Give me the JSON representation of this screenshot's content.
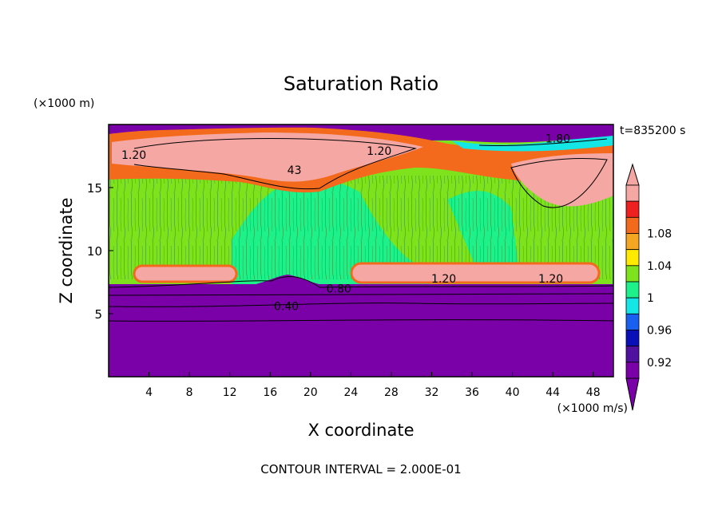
{
  "chart_data": {
    "type": "heatmap",
    "title": "Saturation Ratio",
    "xlabel": "X coordinate",
    "ylabel": "Z coordinate",
    "x_unit": "(×1000 m/s)",
    "y_unit": "(×1000 m)",
    "time_label": "t=835200 s",
    "footer": "CONTOUR INTERVAL = 2.000E-01",
    "xlim": [
      0,
      50
    ],
    "ylim": [
      0,
      20
    ],
    "x_ticks": [
      4,
      8,
      12,
      16,
      20,
      24,
      28,
      32,
      36,
      40,
      44,
      48
    ],
    "y_ticks": [
      5,
      10,
      15
    ],
    "colorbar": {
      "labels": [
        {
          "value": 1.08,
          "text": "1.08"
        },
        {
          "value": 1.04,
          "text": "1.04"
        },
        {
          "value": 1.0,
          "text": "1"
        },
        {
          "value": 0.96,
          "text": "0.96"
        },
        {
          "value": 0.92,
          "text": "0.92"
        }
      ],
      "bins": [
        {
          "color": "#f4a7a3"
        },
        {
          "color": "#ee2020"
        },
        {
          "color": "#f46a1c"
        },
        {
          "color": "#f5a623"
        },
        {
          "color": "#ffea00"
        },
        {
          "color": "#7ee21d"
        },
        {
          "color": "#1ef08a"
        },
        {
          "color": "#14e5e5"
        },
        {
          "color": "#1a60f0"
        },
        {
          "color": "#0a10b8"
        },
        {
          "color": "#5010a0"
        },
        {
          "color": "#7a00a8"
        }
      ]
    },
    "contour_labels": [
      {
        "text": "1.20",
        "x": 2.5,
        "z": 17.6
      },
      {
        "text": "1.20",
        "x": 26.8,
        "z": 17.9
      },
      {
        "text": "1.80",
        "x": 44.5,
        "z": 18.9
      },
      {
        "text": "1.20",
        "x": 33.2,
        "z": 7.8
      },
      {
        "text": "1.20",
        "x": 43.8,
        "z": 7.8
      },
      {
        "text": "0.80",
        "x": 22.8,
        "z": 7.0
      },
      {
        "text": "0.40",
        "x": 17.6,
        "z": 5.6
      },
      {
        "text": "43",
        "x": 18.4,
        "z": 16.4
      }
    ]
  }
}
